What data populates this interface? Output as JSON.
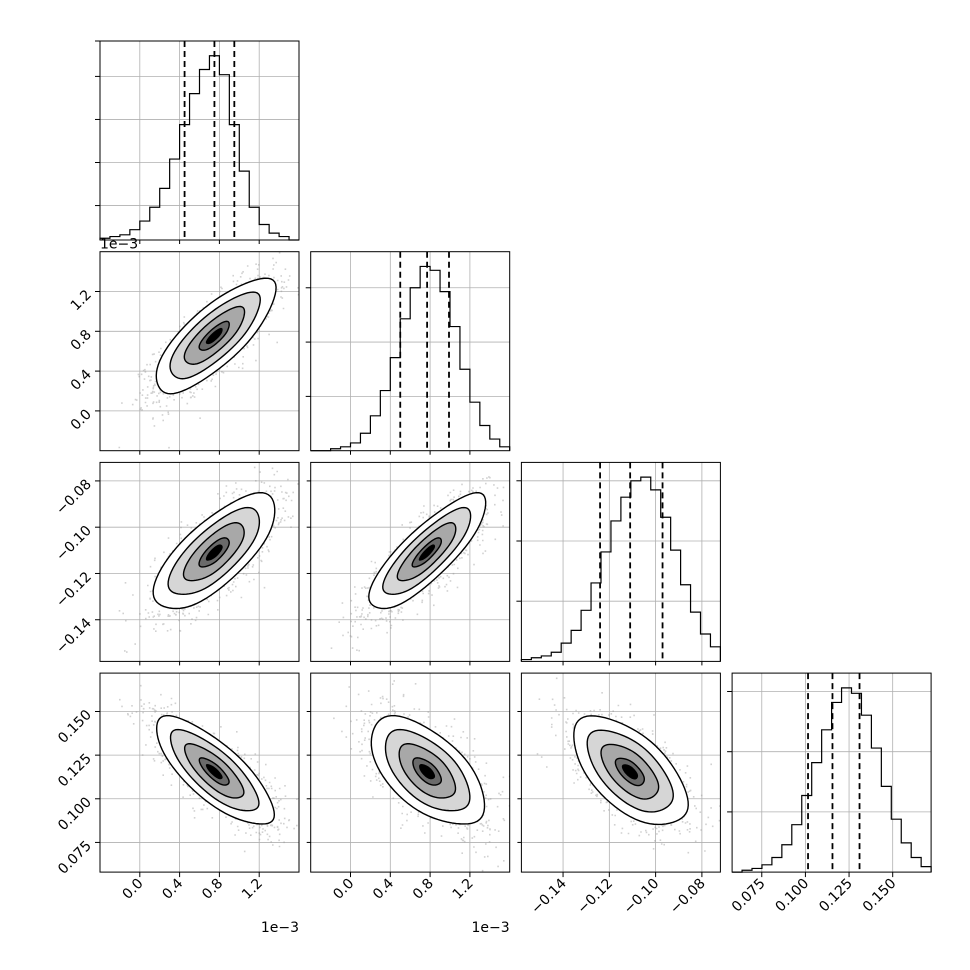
{
  "chart_data": {
    "type": "corner",
    "parameters": [
      {
        "range": [
          -0.0004,
          0.0016
        ],
        "ticks": [
          0.0,
          0.0004,
          0.0008,
          0.0012
        ],
        "tick_labels": [
          "0.0",
          "0.4",
          "0.8",
          "1.2"
        ],
        "offset": "1e−3",
        "quantiles": [
          0.00045,
          0.00075,
          0.00095
        ]
      },
      {
        "range": [
          -0.0004,
          0.0016
        ],
        "ticks": [
          0.0,
          0.0004,
          0.0008,
          0.0012
        ],
        "tick_labels": [
          "0.0",
          "0.4",
          "0.8",
          "1.2"
        ],
        "offset": "1e−3",
        "quantiles": [
          0.0005,
          0.00077,
          0.00099
        ]
      },
      {
        "range": [
          -0.158,
          -0.072
        ],
        "ticks": [
          -0.14,
          -0.12,
          -0.1,
          -0.08
        ],
        "tick_labels": [
          "−0.14",
          "−0.12",
          "−0.10",
          "−0.08"
        ],
        "offset": "",
        "quantiles": [
          -0.124,
          -0.111,
          -0.097
        ]
      },
      {
        "range": [
          0.058,
          0.172
        ],
        "ticks": [
          0.075,
          0.1,
          0.125,
          0.15
        ],
        "tick_labels": [
          "0.075",
          "0.100",
          "0.125",
          "0.150"
        ],
        "offset": "",
        "quantiles": [
          0.1015,
          0.1155,
          0.131
        ]
      }
    ],
    "histograms": [
      {
        "counts": [
          1,
          2,
          3,
          6,
          11,
          19,
          30,
          47,
          67,
          85,
          99,
          107,
          96,
          67,
          40,
          19,
          9,
          4,
          2,
          0
        ],
        "yticks": [
          20,
          45,
          70,
          95
        ]
      },
      {
        "counts": [
          0,
          0,
          1,
          2,
          4,
          9,
          18,
          31,
          48,
          68,
          84,
          95,
          93,
          82,
          64,
          42,
          25,
          13,
          6,
          2
        ],
        "yticks": [
          28,
          56,
          84
        ]
      },
      {
        "counts": [
          1,
          2,
          3,
          5,
          10,
          17,
          28,
          43,
          60,
          77,
          90,
          99,
          101,
          94,
          79,
          61,
          42,
          27,
          15,
          8
        ],
        "yticks": [
          33,
          66,
          99
        ]
      },
      {
        "counts": [
          0,
          1,
          2,
          4,
          8,
          15,
          26,
          42,
          60,
          78,
          93,
          101,
          98,
          86,
          68,
          47,
          29,
          16,
          8,
          3
        ],
        "yticks": [
          33,
          66,
          99
        ]
      }
    ],
    "joint": [
      {
        "row": 1,
        "col": 0,
        "mean": [
          0.00075,
          0.00075
        ],
        "sd": [
          0.0003,
          0.00029
        ],
        "rho": 0.78
      },
      {
        "row": 2,
        "col": 0,
        "mean": [
          0.00075,
          -0.111
        ],
        "sd": [
          0.0003,
          0.0125
        ],
        "rho": 0.72
      },
      {
        "row": 2,
        "col": 1,
        "mean": [
          0.00077,
          -0.111
        ],
        "sd": [
          0.00029,
          0.0125
        ],
        "rho": 0.82
      },
      {
        "row": 3,
        "col": 0,
        "mean": [
          0.00075,
          0.1155
        ],
        "sd": [
          0.0003,
          0.0155
        ],
        "rho": -0.78
      },
      {
        "row": 3,
        "col": 1,
        "mean": [
          0.00077,
          0.1155
        ],
        "sd": [
          0.00029,
          0.0155
        ],
        "rho": -0.6
      },
      {
        "row": 3,
        "col": 2,
        "mean": [
          -0.111,
          0.1155
        ],
        "sd": [
          0.0125,
          0.0155
        ],
        "rho": -0.6
      }
    ],
    "contour_levels": [
      0.5,
      1.0,
      1.5,
      2.0
    ],
    "grid": true,
    "colors": {
      "hist": "#000000",
      "scatter": "#9a9a9a",
      "grid": "#b0b0b0",
      "density_dark": "#000000"
    }
  }
}
